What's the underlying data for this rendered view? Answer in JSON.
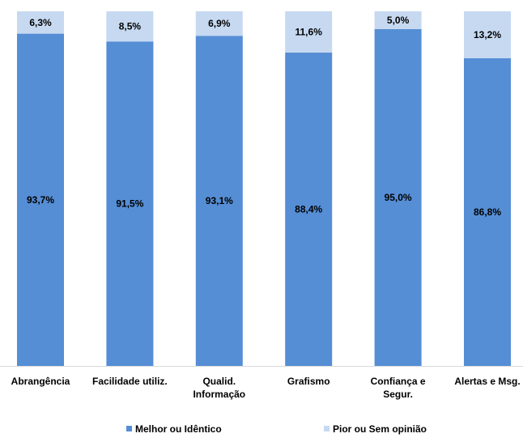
{
  "chart_data": {
    "type": "bar",
    "stacked": true,
    "normalized_to_100": true,
    "categories": [
      [
        "Abrangência"
      ],
      [
        "Facilidade utiliz."
      ],
      [
        "Qualid.",
        "Informação"
      ],
      [
        "Grafismo"
      ],
      [
        "Confiança e",
        "Segur."
      ],
      [
        "Alertas e Msg."
      ]
    ],
    "series": [
      {
        "name": "Melhor ou Idêntico",
        "color": "#558ED5",
        "values": [
          93.7,
          91.5,
          93.1,
          88.4,
          95.0,
          86.8
        ],
        "labels": [
          "93,7%",
          "91,5%",
          "93,1%",
          "88,4%",
          "95,0%",
          "86,8%"
        ]
      },
      {
        "name": "Pior ou Sem opinião",
        "color": "#C6D9F1",
        "values": [
          6.3,
          8.5,
          6.9,
          11.6,
          5.0,
          13.2
        ],
        "labels": [
          "6,3%",
          "8,5%",
          "6,9%",
          "11,6%",
          "5,0%",
          "13,2%"
        ]
      }
    ],
    "ylim": [
      0,
      100
    ],
    "grid": false,
    "legend": "bottom"
  }
}
